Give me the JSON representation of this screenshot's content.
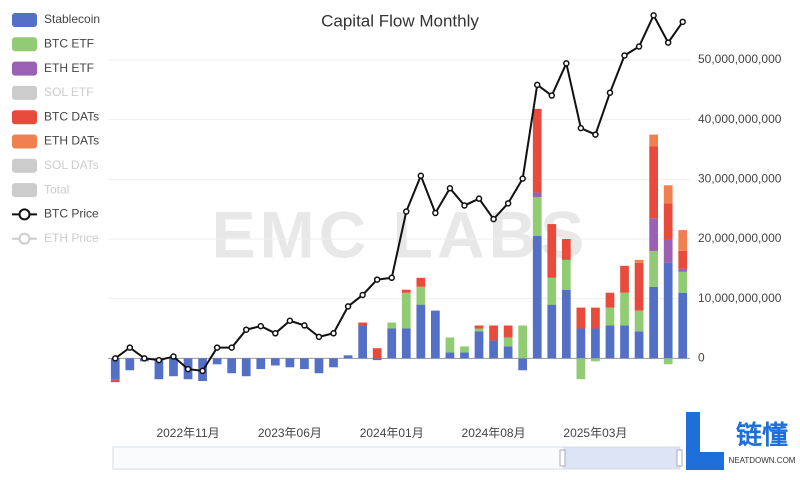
{
  "chart_data": {
    "type": "bar",
    "title": "Capital Flow Monthly",
    "watermark": "EMC LABS",
    "categories": [
      null,
      null,
      null,
      null,
      null,
      "2022年11月",
      null,
      null,
      null,
      null,
      null,
      null,
      "2023年06月",
      null,
      null,
      null,
      null,
      null,
      null,
      "2024年01月",
      null,
      null,
      null,
      null,
      null,
      null,
      "2024年08月",
      null,
      null,
      null,
      null,
      null,
      null,
      "2025年03月",
      null,
      null,
      null,
      null,
      null,
      null
    ],
    "ylim": [
      -10000000000.0,
      50000000000.0
    ],
    "yticks": [
      0,
      {
        "value": 10000000000.0,
        "label": "10,000,000,000"
      },
      {
        "value": 20000000000.0,
        "label": "20,000,000,000"
      },
      {
        "value": 30000000000.0,
        "label": "30,000,000,000"
      },
      {
        "value": 40000000000.0,
        "label": "40,000,000,000"
      },
      {
        "value": 50000000000.0,
        "label": "50,000,000,000"
      }
    ],
    "y2lim": [
      20000,
      120000
    ],
    "grid": true,
    "legend": "top-left",
    "series": [
      {
        "name": "Stablecoin",
        "kind": "bar",
        "color": "#5470c6",
        "values": [
          -3500000000.0,
          -2000000000.0,
          -500000000.0,
          -3500000000.0,
          -3000000000.0,
          -3500000000.0,
          -3800000000.0,
          -1000000000.0,
          -2500000000.0,
          -3000000000.0,
          -1800000000.0,
          -1200000000.0,
          -1500000000.0,
          -1800000000.0,
          -2500000000.0,
          -1500000000.0,
          500000000.0,
          5500000000.0,
          -300000000.0,
          5000000000.0,
          5000000000.0,
          9000000000.0,
          8000000000.0,
          1000000000.0,
          1000000000.0,
          4500000000.0,
          3000000000.0,
          2000000000.0,
          -2000000000.0,
          20500000000.0,
          9000000000.0,
          11500000000.0,
          5000000000.0,
          5000000000.0,
          5500000000.0,
          5500000000.0,
          4500000000.0,
          12000000000.0,
          16000000000.0,
          11000000000.0
        ]
      },
      {
        "name": "BTC ETF",
        "kind": "bar",
        "color": "#91cc75",
        "values": [
          0,
          0,
          0,
          0,
          0,
          0,
          0,
          0,
          0,
          0,
          0,
          0,
          0,
          0,
          0,
          0,
          0,
          0,
          0,
          1000000000.0,
          6000000000.0,
          3000000000.0,
          0,
          2500000000.0,
          1000000000.0,
          500000000.0,
          0,
          1500000000.0,
          5500000000.0,
          6500000000.0,
          4500000000.0,
          5000000000.0,
          -3500000000.0,
          -500000000.0,
          3000000000.0,
          5500000000.0,
          3500000000.0,
          6000000000.0,
          -1000000000.0,
          3500000000.0
        ]
      },
      {
        "name": "ETH ETF",
        "kind": "bar",
        "color": "#9a60b4",
        "values": [
          0,
          0,
          0,
          0,
          0,
          0,
          0,
          0,
          0,
          0,
          0,
          0,
          0,
          0,
          0,
          0,
          0,
          0,
          0,
          0,
          0,
          0,
          0,
          0,
          0,
          0,
          0,
          0,
          0,
          800000000.0,
          0,
          0,
          0,
          0,
          0,
          0,
          0,
          5500000000.0,
          4000000000.0,
          500000000.0
        ]
      },
      {
        "name": "SOL ETF",
        "kind": "bar",
        "color": "#cccccc",
        "hidden": true
      },
      {
        "name": "BTC DATs",
        "kind": "bar",
        "color": "#e84a3c",
        "values": [
          -500000000.0,
          0,
          0,
          0,
          0,
          0,
          0,
          0,
          0,
          0,
          0,
          0,
          0,
          0,
          0,
          0,
          0,
          500000000.0,
          1700000000.0,
          0,
          500000000.0,
          1500000000.0,
          0,
          0,
          0,
          500000000.0,
          2500000000.0,
          2000000000.0,
          0,
          14000000000.0,
          9000000000.0,
          3500000000.0,
          3500000000.0,
          3500000000.0,
          2500000000.0,
          4500000000.0,
          8000000000.0,
          12000000000.0,
          6000000000.0,
          3000000000.0
        ]
      },
      {
        "name": "ETH DATs",
        "kind": "bar",
        "color": "#f08050",
        "values": [
          0,
          0,
          0,
          0,
          0,
          0,
          0,
          0,
          0,
          0,
          0,
          0,
          0,
          0,
          0,
          0,
          0,
          0,
          0,
          0,
          0,
          0,
          0,
          0,
          0,
          0,
          0,
          0,
          0,
          0,
          0,
          0,
          0,
          0,
          0,
          0,
          500000000.0,
          2000000000.0,
          3000000000.0,
          3500000000.0
        ]
      },
      {
        "name": "SOL DATs",
        "kind": "bar",
        "color": "#cccccc",
        "hidden": true
      },
      {
        "name": "Total",
        "kind": "bar",
        "color": "#cccccc",
        "hidden": true
      },
      {
        "name": "BTC Price",
        "kind": "line",
        "axis": "y2",
        "color": "#111111",
        "values": [
          20000,
          23000,
          20000,
          19500,
          20500,
          17000,
          16500,
          23000,
          23000,
          28000,
          29000,
          27000,
          30500,
          29200,
          26000,
          27000,
          34500,
          37700,
          42000,
          42500,
          61000,
          71000,
          60600,
          67500,
          62700,
          64600,
          58900,
          63300,
          70200,
          96400,
          93400,
          102400,
          84300,
          82500,
          94200,
          104600,
          107100,
          115800,
          108200,
          114000
        ]
      },
      {
        "name": "ETH Price",
        "kind": "line",
        "axis": "y2",
        "color": "#cccccc",
        "hidden": true
      }
    ]
  },
  "logo": {
    "name": "链懂",
    "site": "NEATDOWN.COM"
  }
}
